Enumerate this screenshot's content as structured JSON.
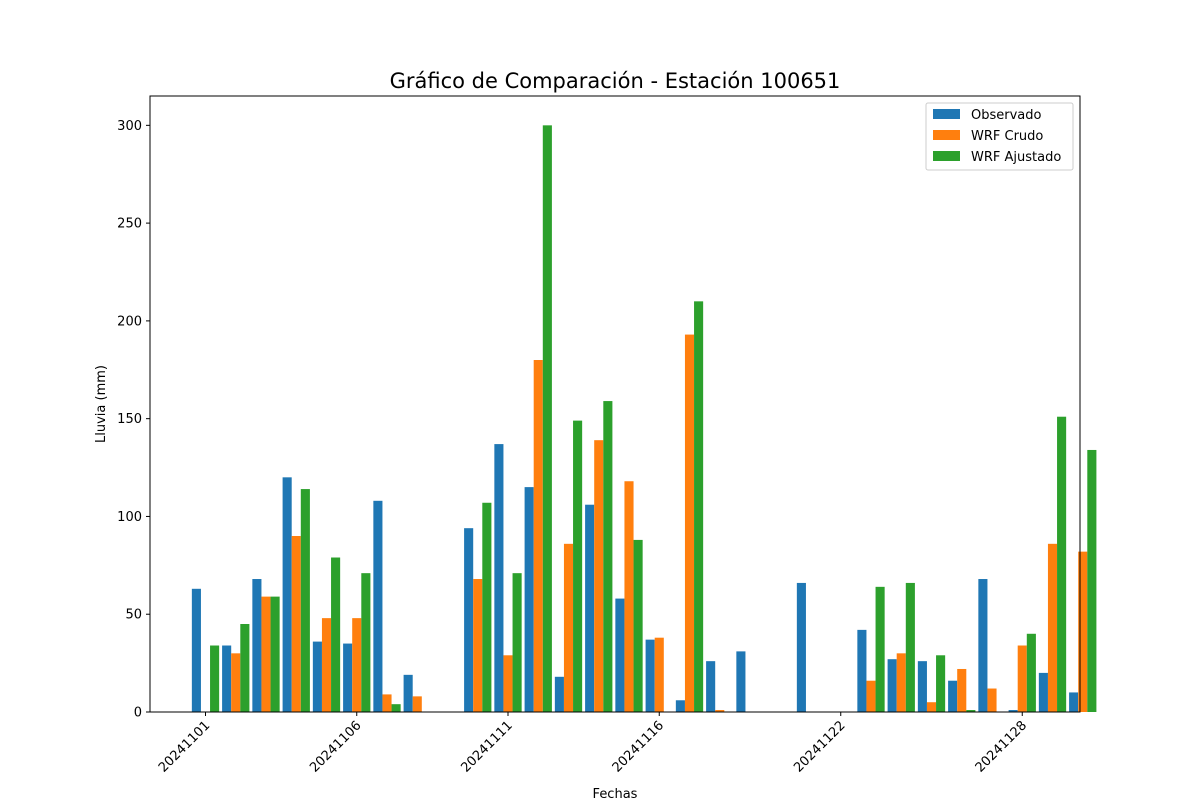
{
  "chart_data": {
    "type": "bar",
    "title": "Gráfico de Comparación - Estación 100651",
    "xlabel": "Fechas",
    "ylabel": "Lluvia (mm)",
    "ylim": [
      0,
      315
    ],
    "yticks": [
      0,
      50,
      100,
      150,
      200,
      250,
      300
    ],
    "xticks": [
      "20241101",
      "20241106",
      "20241111",
      "20241116",
      "20241122",
      "20241128"
    ],
    "legend_position": "top-right",
    "grid": false,
    "x": [
      "2024-11-01",
      "2024-11-02",
      "2024-11-03",
      "2024-11-04",
      "2024-11-05",
      "2024-11-06",
      "2024-11-07",
      "2024-11-08",
      "2024-11-09",
      "2024-11-10",
      "2024-11-11",
      "2024-11-12",
      "2024-11-13",
      "2024-11-14",
      "2024-11-15",
      "2024-11-16",
      "2024-11-17",
      "2024-11-18",
      "2024-11-19",
      "2024-11-20",
      "2024-11-21",
      "2024-11-22",
      "2024-11-23",
      "2024-11-24",
      "2024-11-25",
      "2024-11-26",
      "2024-11-27",
      "2024-11-28",
      "2024-11-29",
      "2024-11-30"
    ],
    "series": [
      {
        "name": "Observado",
        "color": "#1f77b4",
        "values": [
          63,
          34,
          68,
          120,
          36,
          35,
          108,
          19,
          0,
          94,
          137,
          115,
          18,
          106,
          58,
          37,
          6,
          26,
          31,
          0,
          66,
          0,
          42,
          27,
          26,
          16,
          68,
          1,
          20,
          10
        ]
      },
      {
        "name": "WRF Crudo",
        "color": "#ff7f0e",
        "values": [
          0,
          30,
          59,
          90,
          48,
          48,
          9,
          8,
          0,
          68,
          29,
          180,
          86,
          139,
          118,
          38,
          193,
          1,
          0,
          0,
          0,
          0,
          16,
          30,
          5,
          22,
          12,
          34,
          86,
          82
        ]
      },
      {
        "name": "WRF Ajustado",
        "color": "#2ca02c",
        "values": [
          34,
          45,
          59,
          114,
          79,
          71,
          4,
          0,
          0,
          107,
          71,
          300,
          149,
          159,
          88,
          0,
          210,
          0,
          0,
          0,
          0,
          0,
          64,
          66,
          29,
          1,
          0,
          40,
          151,
          134
        ]
      }
    ]
  }
}
